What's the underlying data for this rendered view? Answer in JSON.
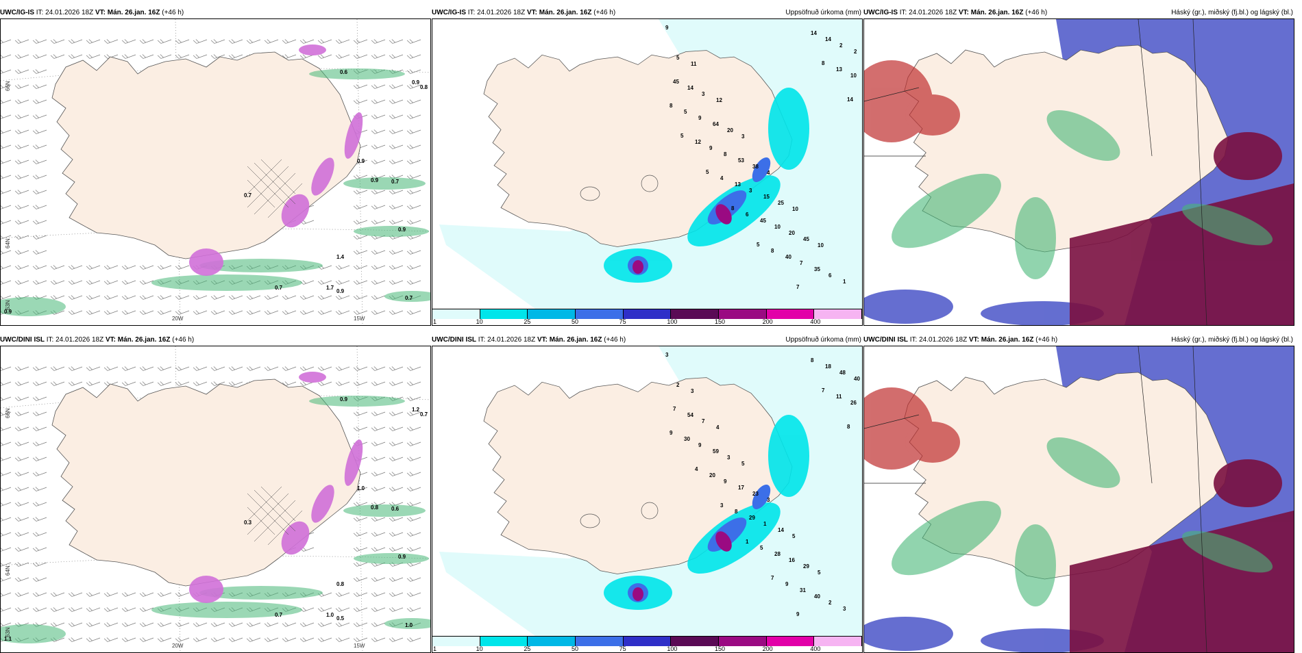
{
  "panels": [
    {
      "id": "p1",
      "model": "UWC/IG-IS",
      "it": "IT: 24.01.2026 18Z",
      "vt_label": "VT:",
      "vt": "Mán. 26.jan. 16Z",
      "lead": "(+46 h)",
      "title": ""
    },
    {
      "id": "p2",
      "model": "UWC/IG-IS",
      "it": "IT: 24.01.2026 18Z",
      "vt_label": "VT:",
      "vt": "Mán. 26.jan. 16Z",
      "lead": "(+46 h)",
      "title": "Uppsöfnuð úrkoma (mm)"
    },
    {
      "id": "p3",
      "model": "UWC/IG-IS",
      "it": "IT: 24.01.2026 18Z",
      "vt_label": "VT:",
      "vt": "Mán. 26.jan. 16Z",
      "lead": "(+46 h)",
      "title": "Háský (gr.), miðský (fj.bl.) og lágský (bl.)"
    },
    {
      "id": "p4",
      "model": "UWC/DINI ISL",
      "it": "IT: 24.01.2026 18Z",
      "vt_label": "VT:",
      "vt": "Mán. 26.jan. 16Z",
      "lead": "(+46 h)",
      "title": ""
    },
    {
      "id": "p5",
      "model": "UWC/DINI ISL",
      "it": "IT: 24.01.2026 18Z",
      "vt_label": "VT:",
      "vt": "Mán. 26.jan. 16Z",
      "lead": "(+46 h)",
      "title": "Uppsöfnuð úrkoma (mm)"
    },
    {
      "id": "p6",
      "model": "UWC/DINI ISL",
      "it": "IT: 24.01.2026 18Z",
      "vt_label": "VT:",
      "vt": "Mán. 26.jan. 16Z",
      "lead": "(+46 h)",
      "title": "Háský (gr.), miðský (fj.bl.) og lágský (bl.)"
    }
  ],
  "axes": {
    "lon_20": "20W",
    "lon_15": "15W",
    "lat_66": "66N",
    "lat_64": "64N",
    "lat_63": "63N"
  },
  "colorbar": {
    "ticks": [
      "1",
      "10",
      "25",
      "50",
      "75",
      "100",
      "150",
      "200",
      "400"
    ],
    "colors": [
      "#e0fbfb",
      "#00e5ea",
      "#00b8e6",
      "#3c6fe8",
      "#2f2fc8",
      "#5a0a55",
      "#9a0a82",
      "#e200a8",
      "#f6b4f2"
    ]
  },
  "colors": {
    "land": "#fbeee3",
    "green": "#48b878",
    "purple": "#d070d8",
    "lowcloud": "#4a55c8",
    "midcloud": "#6a78e0",
    "highcloud": "#c03030",
    "mauve": "#7a1040"
  },
  "precip_labels_top": [
    "9",
    "11",
    "12",
    "3",
    "4",
    "10",
    "10",
    "1",
    "5",
    "3",
    "20",
    "38",
    "25",
    "45",
    "6",
    "2",
    "14",
    "64",
    "53",
    "15",
    "20",
    "35",
    "2",
    "45",
    "9",
    "8",
    "3",
    "10",
    "7",
    "14",
    "10",
    "5",
    "9",
    "13",
    "45",
    "40",
    "14",
    "13",
    "8",
    "12",
    "4",
    "6",
    "8",
    "7",
    "8",
    "14",
    "5",
    "5",
    "8",
    "5"
  ],
  "precip_labels_bottom": [
    "3",
    "3",
    "4",
    "5",
    "3",
    "5",
    "5",
    "3",
    "2",
    "7",
    "3",
    "23",
    "14",
    "29",
    "2",
    "40",
    "54",
    "59",
    "17",
    "1",
    "16",
    "40",
    "48",
    "7",
    "9",
    "9",
    "29",
    "28",
    "31",
    "18",
    "26",
    "30",
    "20",
    "8",
    "5",
    "9",
    "8",
    "11",
    "9",
    "4",
    "3",
    "1",
    "7",
    "9",
    "7",
    "8"
  ],
  "wind_labels_top": [
    "0.6",
    "0.9",
    "0.8",
    "0.7",
    "0.9",
    "0.9",
    "1.4",
    "0.7",
    "1.7",
    "0.9",
    "0.7",
    "0.9",
    "0.7",
    "0.9"
  ],
  "wind_labels_bottom": [
    "0.9",
    "1.2",
    "0.7",
    "0.6",
    "0.8",
    "0.9",
    "0.8",
    "0.7",
    "1.0",
    "0.5",
    "1.0",
    "1.1",
    "0.3",
    "1.0"
  ]
}
